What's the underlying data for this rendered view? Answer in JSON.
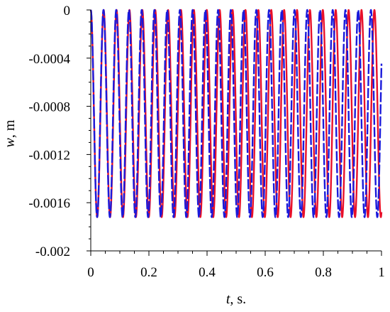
{
  "chart_data": {
    "type": "line",
    "title": "",
    "xlabel": {
      "symbol": "t",
      "unit": ", s."
    },
    "ylabel": {
      "symbol": "w",
      "unit": ", m"
    },
    "xlim": [
      0,
      1
    ],
    "ylim": [
      -0.002,
      0
    ],
    "x_ticks": [
      0,
      0.2,
      0.4,
      0.6,
      0.8,
      1
    ],
    "x_tick_labels": [
      "0",
      "0.2",
      "0.4",
      "0.6",
      "0.8",
      "1"
    ],
    "y_ticks": [
      0,
      -0.0004,
      -0.0008,
      -0.0012,
      -0.0016,
      -0.002
    ],
    "y_tick_labels": [
      "0",
      "-0.0004",
      "-0.0008",
      "-0.0012",
      "-0.0016",
      "-0.002"
    ],
    "grid": false,
    "legend": "none",
    "series": [
      {
        "color": "#e8102a",
        "line_style": "solid",
        "waveform": "w(t) = -A * (1 - cos(2*pi*f*t))",
        "amplitude_A": 0.00086,
        "frequency_hz": 22.55,
        "min_value": -0.00172,
        "max_value": 0.0,
        "t_start": 0.0,
        "t_end": 1.0
      },
      {
        "color": "#1a1adb",
        "line_style": "dashed",
        "waveform": "w(t) = -A * (1 - cos(2*pi*f*t))",
        "amplitude_A": 0.00086,
        "frequency_hz": 22.83,
        "min_value": -0.00172,
        "max_value": 0.0,
        "t_start": 0.0,
        "t_end": 1.0
      }
    ]
  }
}
